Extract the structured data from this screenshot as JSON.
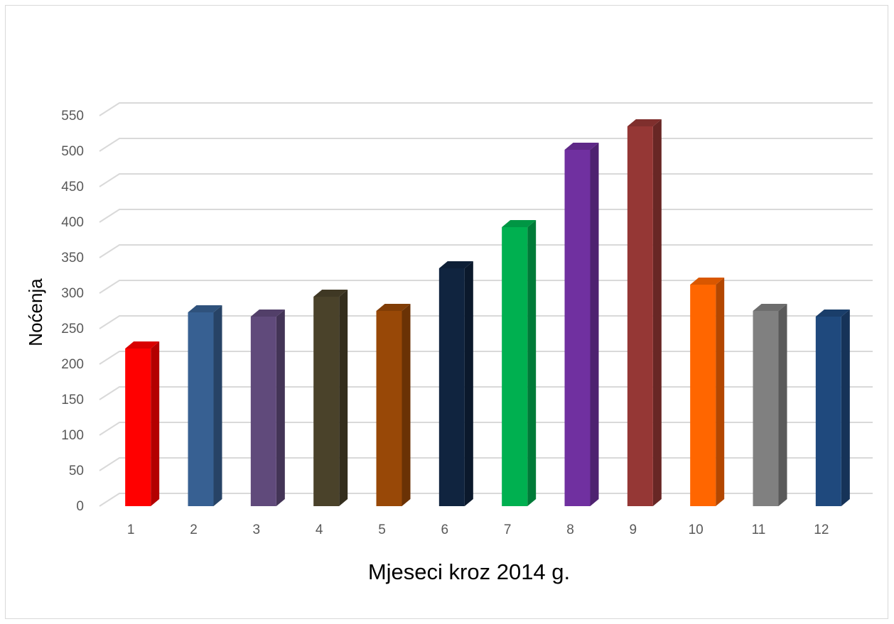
{
  "chart_data": {
    "type": "bar",
    "xlabel": "Mjeseci kroz 2014 g.",
    "ylabel": "Noćenja",
    "categories": [
      "1",
      "2",
      "3",
      "4",
      "5",
      "6",
      "7",
      "8",
      "9",
      "10",
      "11",
      "12"
    ],
    "values": [
      222,
      273,
      267,
      295,
      275,
      335,
      393,
      502,
      535,
      312,
      275,
      267
    ],
    "colors": [
      "#ff0000",
      "#376092",
      "#604a7b",
      "#4a422a",
      "#984807",
      "#10243f",
      "#00b050",
      "#7030a0",
      "#953735",
      "#ff6600",
      "#808080",
      "#1f497d"
    ],
    "ylim": [
      0,
      550
    ],
    "yticks": [
      0,
      50,
      100,
      150,
      200,
      250,
      300,
      350,
      400,
      450,
      500,
      550
    ],
    "grid": true
  }
}
